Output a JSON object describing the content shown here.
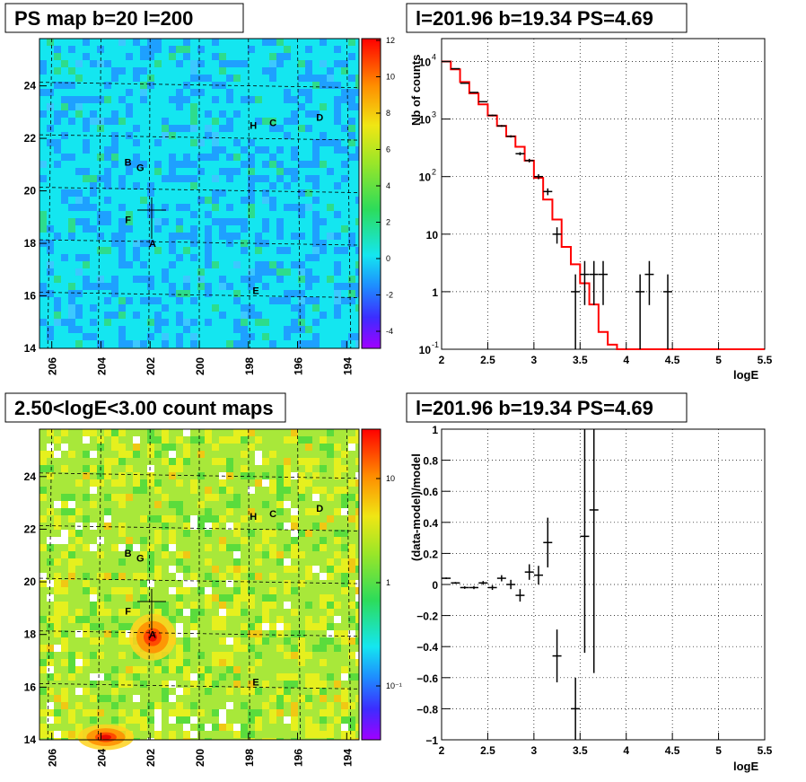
{
  "colors": {
    "ps_map_bg": "#14e6f0",
    "count_map_bg": "#a8e83a",
    "model_line": "#ff0000",
    "data_marks": "#000000"
  },
  "panels": {
    "ps_map": {
      "title": "PS map b=20 l=200",
      "x_ticks": [
        "206",
        "204",
        "202",
        "200",
        "198",
        "196",
        "194"
      ],
      "y_ticks": [
        "24",
        "22",
        "20",
        "18",
        "16",
        "14"
      ],
      "colorbar_ticks": [
        "12",
        "10",
        "8",
        "6",
        "4",
        "2",
        "0",
        "-2",
        "-4"
      ],
      "sources": [
        "A",
        "B",
        "C",
        "D",
        "E",
        "F",
        "G",
        "H"
      ]
    },
    "spectrum": {
      "title": "l=201.96 b=19.34 PS=4.69",
      "xlabel": "logE",
      "ylabel": "Nb of counts",
      "x_ticks": [
        "2",
        "2.5",
        "3",
        "3.5",
        "4",
        "4.5",
        "5",
        "5.5"
      ]
    },
    "count_map": {
      "title": "2.50<logE<3.00 count maps",
      "x_ticks": [
        "206",
        "204",
        "202",
        "200",
        "198",
        "196",
        "194"
      ],
      "y_ticks": [
        "24",
        "22",
        "20",
        "18",
        "16",
        "14"
      ],
      "colorbar_ticks": [
        "10",
        "1",
        "10⁻¹"
      ],
      "sources": [
        "A",
        "B",
        "C",
        "D",
        "E",
        "F",
        "G",
        "H"
      ]
    },
    "residual": {
      "title": "l=201.96 b=19.34 PS=4.69",
      "xlabel": "logE",
      "ylabel": "(data-model)/model",
      "x_ticks": [
        "2",
        "2.5",
        "3",
        "3.5",
        "4",
        "4.5",
        "5",
        "5.5"
      ],
      "y_ticks": [
        "1",
        "0.8",
        "0.6",
        "0.4",
        "0.2",
        "0",
        "−0.2",
        "−0.4",
        "−0.6",
        "−0.8",
        "−1"
      ]
    }
  },
  "chart_data": [
    {
      "type": "heatmap",
      "title": "PS map b=20 l=200",
      "xlabel": "",
      "ylabel": "",
      "xlim": [
        206.5,
        193.5
      ],
      "ylim": [
        14,
        25.8
      ],
      "colorbar_range": [
        -5,
        12
      ],
      "sources": [
        {
          "name": "A",
          "l": 201.9,
          "b": 18.0
        },
        {
          "name": "B",
          "l": 202.9,
          "b": 21.1
        },
        {
          "name": "C",
          "l": 197.0,
          "b": 22.6
        },
        {
          "name": "D",
          "l": 195.1,
          "b": 22.8
        },
        {
          "name": "E",
          "l": 197.7,
          "b": 16.2
        },
        {
          "name": "F",
          "l": 202.9,
          "b": 18.9
        },
        {
          "name": "G",
          "l": 202.4,
          "b": 20.9
        },
        {
          "name": "H",
          "l": 197.8,
          "b": 22.5
        }
      ],
      "marker": {
        "l": 201.96,
        "b": 19.34
      }
    },
    {
      "type": "line",
      "title": "l=201.96 b=19.34 PS=4.69",
      "xlabel": "logE",
      "ylabel": "Nb of counts",
      "xlim": [
        2,
        5.5
      ],
      "ylim": [
        0.1,
        25000
      ],
      "yscale": "log",
      "grid": true,
      "series": [
        {
          "name": "data",
          "values": [
            {
              "x": 2.05,
              "y": 10000
            },
            {
              "x": 2.15,
              "y": 7500
            },
            {
              "x": 2.25,
              "y": 4200
            },
            {
              "x": 2.35,
              "y": 2900
            },
            {
              "x": 2.45,
              "y": 2000
            },
            {
              "x": 2.55,
              "y": 1160
            },
            {
              "x": 2.65,
              "y": 760
            },
            {
              "x": 2.75,
              "y": 500
            },
            {
              "x": 2.85,
              "y": 250
            },
            {
              "x": 2.95,
              "y": 190
            },
            {
              "x": 3.05,
              "y": 100
            },
            {
              "x": 3.15,
              "y": 55
            },
            {
              "x": 3.25,
              "y": 10
            },
            {
              "x": 3.45,
              "y": 1
            },
            {
              "x": 3.55,
              "y": 2
            },
            {
              "x": 3.65,
              "y": 2
            },
            {
              "x": 3.75,
              "y": 2
            },
            {
              "x": 4.15,
              "y": 1
            },
            {
              "x": 4.25,
              "y": 2
            },
            {
              "x": 4.45,
              "y": 1
            }
          ]
        },
        {
          "name": "model",
          "step_edges": [
            2.0,
            2.1,
            2.2,
            2.3,
            2.4,
            2.5,
            2.6,
            2.7,
            2.8,
            2.9,
            3.0,
            3.1,
            3.2,
            3.3,
            3.4,
            3.5,
            3.6,
            3.7,
            3.8,
            3.9,
            4.0,
            5.5
          ],
          "values": [
            10000,
            7300,
            4400,
            2800,
            1800,
            1150,
            760,
            500,
            330,
            190,
            95,
            40,
            18,
            6,
            3,
            1.4,
            0.6,
            0.2,
            0.12,
            0.1,
            0.1
          ]
        }
      ]
    },
    {
      "type": "heatmap",
      "title": "2.50<logE<3.00 count maps",
      "xlabel": "",
      "ylabel": "",
      "xlim": [
        206.5,
        193.5
      ],
      "ylim": [
        14,
        25.8
      ],
      "colorbar_range": [
        0.05,
        20
      ],
      "colorbar_scale": "log",
      "hotspots": [
        {
          "l": 201.9,
          "b": 17.9
        },
        {
          "l": 203.8,
          "b": 14.1
        }
      ]
    },
    {
      "type": "scatter",
      "title": "l=201.96 b=19.34 PS=4.69",
      "xlabel": "logE",
      "ylabel": "(data-model)/model",
      "xlim": [
        2,
        5.5
      ],
      "ylim": [
        -1,
        1
      ],
      "grid": true,
      "points": [
        {
          "x": 2.05,
          "y": 0.04
        },
        {
          "x": 2.15,
          "y": 0.01
        },
        {
          "x": 2.25,
          "y": -0.02
        },
        {
          "x": 2.35,
          "y": -0.02
        },
        {
          "x": 2.45,
          "y": 0.01
        },
        {
          "x": 2.55,
          "y": -0.02
        },
        {
          "x": 2.65,
          "y": 0.04
        },
        {
          "x": 2.75,
          "y": 0.0
        },
        {
          "x": 2.85,
          "y": -0.07
        },
        {
          "x": 2.95,
          "y": 0.08
        },
        {
          "x": 3.05,
          "y": 0.06
        },
        {
          "x": 3.15,
          "y": 0.27
        },
        {
          "x": 3.25,
          "y": -0.46
        },
        {
          "x": 3.45,
          "y": -0.8
        },
        {
          "x": 3.55,
          "y": 0.31
        },
        {
          "x": 3.65,
          "y": 0.48
        }
      ]
    }
  ]
}
